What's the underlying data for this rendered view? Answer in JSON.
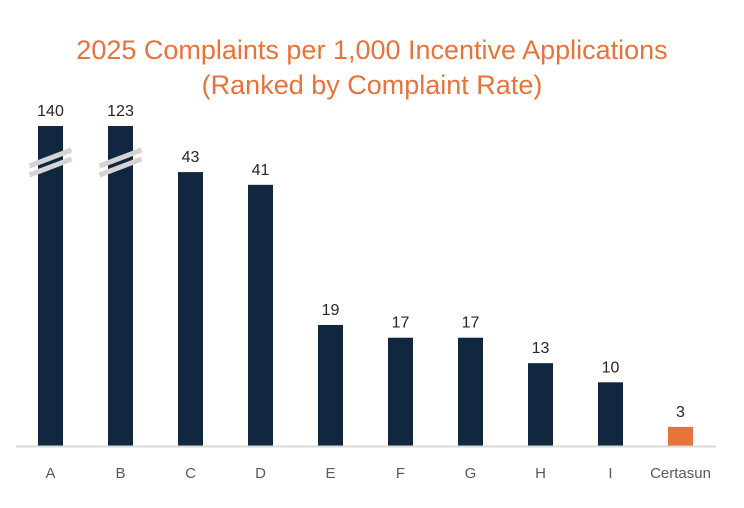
{
  "chart_data": {
    "type": "bar",
    "title": "2025 Complaints per 1,000 Incentive Applications",
    "subtitle": "(Ranked by Complaint Rate)",
    "categories": [
      "A",
      "B",
      "C",
      "D",
      "E",
      "F",
      "G",
      "H",
      "I",
      "Certasun"
    ],
    "values": [
      140,
      123,
      43,
      41,
      19,
      17,
      17,
      13,
      10,
      3
    ],
    "value_labels": [
      "140",
      "123",
      "43",
      "41",
      "19",
      "17",
      "17",
      "13",
      "10",
      "3"
    ],
    "broken_axis_bars": [
      "A",
      "B"
    ],
    "colors": [
      "#10273F",
      "#10273F",
      "#10273F",
      "#10273F",
      "#10273F",
      "#10273F",
      "#10273F",
      "#10273F",
      "#10273F",
      "#E8733A"
    ],
    "highlight_color": "#E8733A",
    "bar_color": "#10273F",
    "xlabel": "",
    "ylabel": "",
    "ylim": [
      0,
      50
    ],
    "grid": false,
    "legend": "none"
  }
}
